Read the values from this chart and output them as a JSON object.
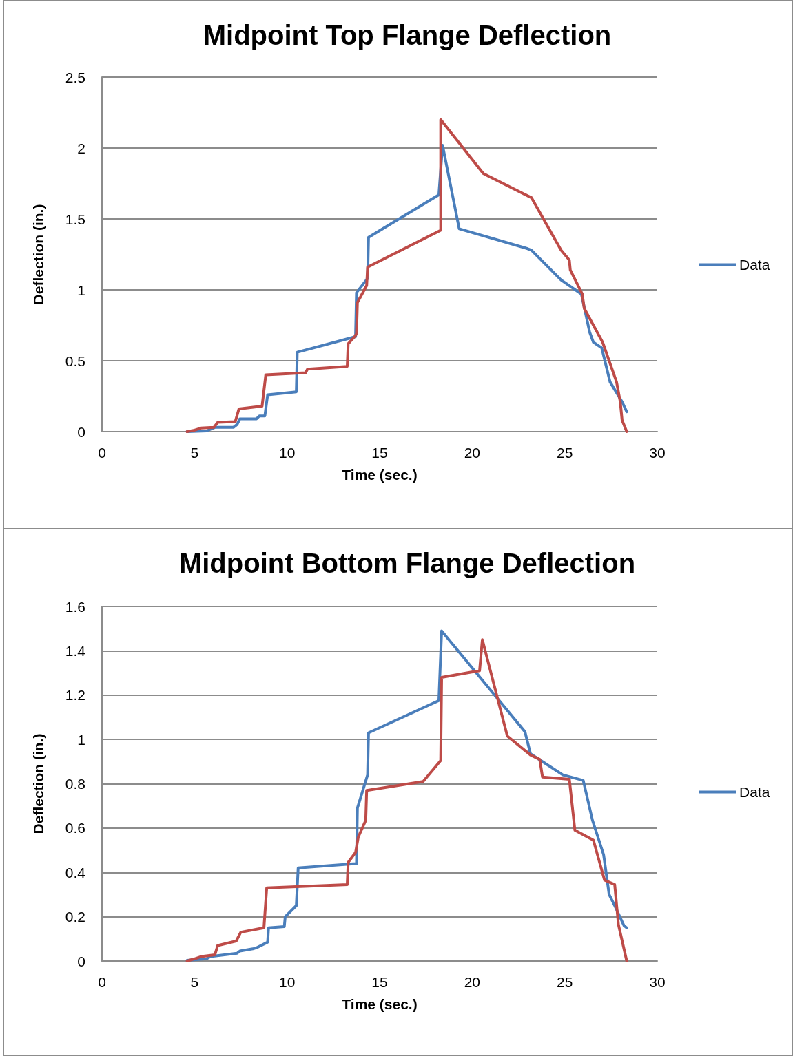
{
  "chart_data": [
    {
      "type": "line",
      "title": "Midpoint Top Flange Deflection",
      "xlabel": "Time (sec.)",
      "ylabel": "Deflection (in.)",
      "xlim": [
        0,
        30
      ],
      "xticks": [
        0,
        5,
        10,
        15,
        20,
        25,
        30
      ],
      "ylim": [
        0,
        2.5
      ],
      "yticks": [
        0,
        0.5,
        1,
        1.5,
        2,
        2.5
      ],
      "grid": "y",
      "legend": "right",
      "marker": "none",
      "line_style": "solid",
      "series": [
        {
          "name": "Data",
          "color": "#4a7ebb",
          "x": [
            4.6,
            5.65,
            6.1,
            7.1,
            7.3,
            7.45,
            8.35,
            8.5,
            8.8,
            8.95,
            10.5,
            10.55,
            13.7,
            13.75,
            14.35,
            14.4,
            18.2,
            18.4,
            19.3,
            23.0,
            23.2,
            24.8,
            25.9,
            26.35,
            26.55,
            27.0,
            27.45,
            28.1,
            28.35
          ],
          "values": [
            0,
            0.005,
            0.03,
            0.03,
            0.05,
            0.09,
            0.09,
            0.11,
            0.11,
            0.26,
            0.28,
            0.56,
            0.67,
            0.98,
            1.08,
            1.37,
            1.67,
            2.02,
            1.43,
            1.29,
            1.28,
            1.07,
            0.97,
            0.7,
            0.63,
            0.59,
            0.35,
            0.21,
            0.14
          ]
        },
        {
          "color": "#be4b48",
          "x": [
            4.6,
            5.0,
            5.35,
            6.05,
            6.25,
            7.2,
            7.4,
            8.65,
            8.85,
            11.0,
            11.1,
            13.25,
            13.3,
            13.65,
            13.75,
            13.8,
            14.3,
            14.35,
            18.3,
            18.3,
            20.6,
            23.2,
            24.8,
            25.25,
            25.3,
            25.95,
            26.05,
            27.05,
            27.8,
            28.0,
            28.1,
            28.35
          ],
          "values": [
            0,
            0.01,
            0.025,
            0.03,
            0.065,
            0.07,
            0.16,
            0.18,
            0.4,
            0.415,
            0.44,
            0.46,
            0.62,
            0.67,
            0.69,
            0.91,
            1.03,
            1.16,
            1.42,
            2.2,
            1.82,
            1.65,
            1.28,
            1.21,
            1.14,
            0.97,
            0.87,
            0.63,
            0.35,
            0.21,
            0.08,
            0
          ]
        }
      ]
    },
    {
      "type": "line",
      "title": "Midpoint Bottom Flange Deflection",
      "xlabel": "Time (sec.)",
      "ylabel": "Deflection (in.)",
      "xlim": [
        0,
        30
      ],
      "xticks": [
        0,
        5,
        10,
        15,
        20,
        25,
        30
      ],
      "ylim": [
        0,
        1.6
      ],
      "yticks": [
        0,
        0.2,
        0.4,
        0.6,
        0.8,
        1,
        1.2,
        1.4,
        1.6
      ],
      "grid": "y",
      "legend": "right",
      "marker": "none",
      "line_style": "solid",
      "series": [
        {
          "name": "Data",
          "color": "#4a7ebb",
          "x": [
            4.6,
            5.65,
            5.85,
            7.3,
            7.45,
            8.15,
            8.35,
            8.95,
            9.0,
            9.85,
            9.9,
            10.5,
            10.6,
            13.75,
            13.8,
            14.35,
            14.4,
            18.2,
            18.35,
            22.85,
            23.15,
            24.9,
            26.0,
            26.5,
            27.1,
            27.4,
            27.7,
            28.2,
            28.35
          ],
          "values": [
            0.003,
            0.01,
            0.02,
            0.035,
            0.045,
            0.055,
            0.06,
            0.085,
            0.15,
            0.155,
            0.2,
            0.25,
            0.42,
            0.44,
            0.69,
            0.84,
            1.03,
            1.175,
            1.49,
            1.035,
            0.935,
            0.84,
            0.815,
            0.635,
            0.48,
            0.3,
            0.25,
            0.16,
            0.15
          ]
        },
        {
          "color": "#be4b48",
          "x": [
            4.6,
            5.0,
            5.35,
            6.1,
            6.25,
            7.25,
            7.5,
            8.75,
            8.9,
            13.25,
            13.3,
            13.7,
            13.85,
            14.25,
            14.3,
            17.35,
            18.3,
            18.35,
            20.4,
            20.55,
            21.9,
            23.15,
            23.65,
            23.8,
            25.25,
            25.55,
            26.55,
            27.15,
            27.7,
            27.9,
            28.35
          ],
          "values": [
            0,
            0.01,
            0.02,
            0.028,
            0.07,
            0.09,
            0.13,
            0.15,
            0.33,
            0.345,
            0.445,
            0.49,
            0.56,
            0.635,
            0.77,
            0.81,
            0.905,
            1.28,
            1.31,
            1.45,
            1.015,
            0.93,
            0.91,
            0.83,
            0.82,
            0.59,
            0.545,
            0.365,
            0.345,
            0.165,
            0
          ]
        }
      ]
    }
  ]
}
